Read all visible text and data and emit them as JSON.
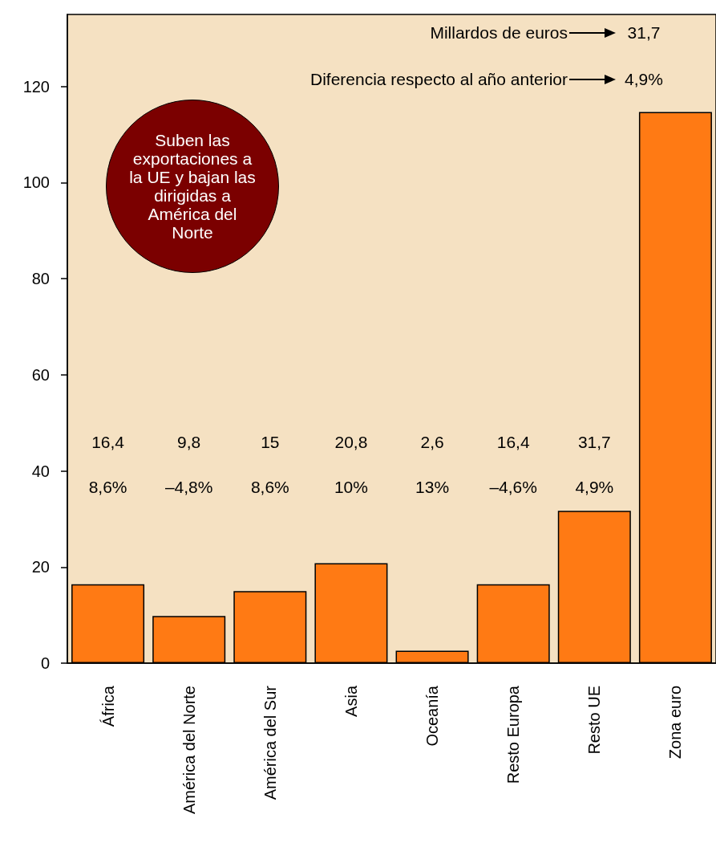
{
  "chart_data": {
    "type": "bar",
    "categories": [
      "África",
      "América del Norte",
      "América del Sur",
      "Asia",
      "Oceanía",
      "Resto Europa",
      "Resto UE",
      "Zona euro"
    ],
    "values": [
      16.4,
      9.8,
      15,
      20.8,
      2.6,
      16.4,
      31.7,
      114.7
    ],
    "color": "#ff7a14",
    "ylim": [
      0,
      135
    ],
    "yticks": [
      0,
      20,
      40,
      60,
      80,
      100,
      120
    ],
    "grid": false,
    "annotations": [
      "Suben las exportaciones a la UE y bajan las dirigidas a América del Norte",
      "Millardos de euros",
      "31,7",
      "Diferencia respecto al año anterior",
      "4,9%",
      "16,4",
      "8,6%",
      "9,8",
      "–4,8%",
      "15",
      "8,6%",
      "20,8",
      "10%",
      "2,6",
      "13%",
      "16,4",
      "–4,6%",
      "31,7",
      "4,9%"
    ]
  }
}
